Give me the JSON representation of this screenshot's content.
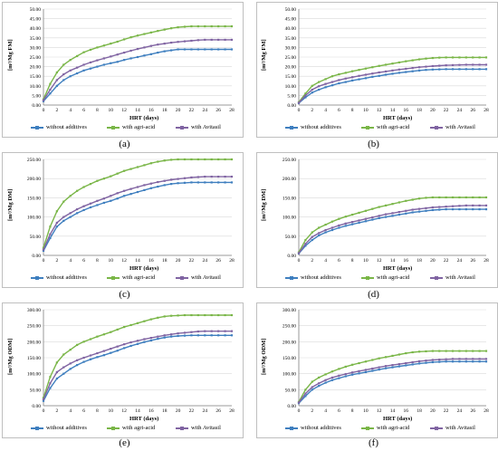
{
  "legend": {
    "s1": "without additives",
    "s2": "with agri-acid",
    "s3": "with Avitasil"
  },
  "colors": {
    "s1": "#3f7fbf",
    "s2": "#7ab648",
    "s3": "#8064a2"
  },
  "chart_data": [
    {
      "type": "line",
      "caption": "(a)",
      "ylabel": "[m³/Mg FM]",
      "xlabel": "HRT (days)",
      "ylim": [
        0,
        50
      ],
      "yticks": [
        "0.00",
        "5.00",
        "10.00",
        "15.00",
        "20.00",
        "25.00",
        "30.00",
        "35.00",
        "40.00",
        "45.00",
        "50.00"
      ],
      "xticks": [
        "0",
        "2",
        "4",
        "6",
        "8",
        "10",
        "12",
        "14",
        "16",
        "18",
        "20",
        "22",
        "24",
        "26",
        "28"
      ],
      "x": [
        0,
        1,
        2,
        3,
        4,
        5,
        6,
        7,
        8,
        9,
        10,
        11,
        12,
        13,
        14,
        15,
        16,
        17,
        18,
        19,
        20,
        21,
        22,
        23,
        24,
        25,
        26,
        27,
        28
      ],
      "series": [
        {
          "name": "without additives",
          "values": [
            2,
            6,
            10,
            13,
            15,
            16.5,
            18,
            19,
            20,
            21,
            21.8,
            22.5,
            23.5,
            24.3,
            25,
            25.8,
            26.5,
            27.3,
            28,
            28.5,
            29,
            29,
            29,
            29,
            29,
            29,
            29,
            29,
            29
          ]
        },
        {
          "name": "with agri-acid",
          "values": [
            3,
            11,
            17,
            21,
            23.5,
            25.5,
            27.5,
            28.8,
            30,
            31,
            32,
            33,
            34.2,
            35.3,
            36.2,
            37,
            37.8,
            38.6,
            39.3,
            40,
            40.5,
            40.8,
            41,
            41,
            41,
            41,
            41,
            41,
            41
          ]
        },
        {
          "name": "with Avitasil",
          "values": [
            2.5,
            8,
            13,
            16,
            18,
            19.5,
            21,
            22.2,
            23.3,
            24.3,
            25.3,
            26.3,
            27.3,
            28.3,
            29.2,
            30,
            30.8,
            31.5,
            32,
            32.5,
            32.9,
            33.2,
            33.5,
            33.8,
            34,
            34,
            34,
            34,
            34
          ]
        }
      ]
    },
    {
      "type": "line",
      "caption": "(b)",
      "ylabel": "[m³/Mg FM]",
      "xlabel": "HRT (days)",
      "ylim": [
        0,
        50
      ],
      "yticks": [
        "0.00",
        "5.00",
        "10.00",
        "15.00",
        "20.00",
        "25.00",
        "30.00",
        "35.00",
        "40.00",
        "45.00",
        "50.00"
      ],
      "xticks": [
        "0",
        "2",
        "4",
        "6",
        "8",
        "10",
        "12",
        "14",
        "16",
        "18",
        "20",
        "22",
        "24",
        "26",
        "28"
      ],
      "x": [
        0,
        1,
        2,
        3,
        4,
        5,
        6,
        7,
        8,
        9,
        10,
        11,
        12,
        13,
        14,
        15,
        16,
        17,
        18,
        19,
        20,
        21,
        22,
        23,
        24,
        25,
        26,
        27,
        28
      ],
      "series": [
        {
          "name": "without additives",
          "values": [
            1,
            4,
            6.5,
            8,
            9.3,
            10.3,
            11.3,
            12,
            12.8,
            13.4,
            14,
            14.7,
            15.2,
            15.8,
            16.3,
            16.8,
            17.2,
            17.6,
            18,
            18.3,
            18.5,
            18.6,
            18.7,
            18.7,
            18.7,
            18.7,
            18.7,
            18.7,
            18.7
          ]
        },
        {
          "name": "with agri-acid",
          "values": [
            1.5,
            6,
            10,
            12,
            13.5,
            15,
            16,
            16.8,
            17.6,
            18.3,
            19,
            19.7,
            20.4,
            21,
            21.6,
            22.2,
            22.8,
            23.3,
            23.8,
            24.2,
            24.5,
            24.7,
            24.8,
            24.8,
            24.8,
            24.8,
            24.8,
            24.8,
            24.8
          ]
        },
        {
          "name": "with Avitasil",
          "values": [
            1.2,
            5,
            8,
            9.8,
            11,
            12,
            13,
            13.8,
            14.5,
            15.2,
            15.8,
            16.4,
            17,
            17.5,
            18,
            18.5,
            18.9,
            19.3,
            19.7,
            20,
            20.3,
            20.5,
            20.7,
            20.8,
            20.9,
            21,
            21,
            21,
            21
          ]
        }
      ]
    },
    {
      "type": "line",
      "caption": "(c)",
      "ylabel": "[m³/Mg DM]",
      "xlabel": "HRT (days)",
      "ylim": [
        0,
        250
      ],
      "yticks": [
        "0.00",
        "50.00",
        "100.00",
        "150.00",
        "200.00",
        "250.00"
      ],
      "xticks": [
        "0",
        "2",
        "4",
        "6",
        "8",
        "10",
        "12",
        "14",
        "16",
        "18",
        "20",
        "22",
        "24",
        "26",
        "28"
      ],
      "x": [
        0,
        1,
        2,
        3,
        4,
        5,
        6,
        7,
        8,
        9,
        10,
        11,
        12,
        13,
        14,
        15,
        16,
        17,
        18,
        19,
        20,
        21,
        22,
        23,
        24,
        25,
        26,
        27,
        28
      ],
      "series": [
        {
          "name": "without additives",
          "values": [
            12,
            45,
            75,
            90,
            100,
            110,
            118,
            125,
            131,
            137,
            142,
            148,
            155,
            160,
            165,
            170,
            175,
            179,
            183,
            186,
            188,
            189,
            190,
            190,
            190,
            190,
            190,
            190,
            190
          ]
        },
        {
          "name": "with agri-acid",
          "values": [
            20,
            75,
            115,
            140,
            155,
            168,
            178,
            186,
            194,
            200,
            206,
            213,
            220,
            225,
            230,
            235,
            240,
            244,
            247,
            249,
            250,
            250,
            250,
            250,
            250,
            250,
            250,
            250,
            250
          ]
        },
        {
          "name": "with Avitasil",
          "values": [
            15,
            55,
            85,
            100,
            110,
            120,
            128,
            135,
            142,
            148,
            155,
            162,
            168,
            173,
            178,
            183,
            187,
            191,
            194,
            197,
            199,
            201,
            203,
            204,
            205,
            205,
            205,
            205,
            205
          ]
        }
      ]
    },
    {
      "type": "line",
      "caption": "(d)",
      "ylabel": "[m³/Mg DM]",
      "xlabel": "HRT (days)",
      "ylim": [
        0,
        250
      ],
      "yticks": [
        "0.00",
        "50.00",
        "100.00",
        "150.00",
        "200.00",
        "250.00"
      ],
      "xticks": [
        "0",
        "2",
        "4",
        "6",
        "8",
        "10",
        "12",
        "14",
        "16",
        "18",
        "20",
        "22",
        "24",
        "26",
        "28"
      ],
      "x": [
        0,
        1,
        2,
        3,
        4,
        5,
        6,
        7,
        8,
        9,
        10,
        11,
        12,
        13,
        14,
        15,
        16,
        17,
        18,
        19,
        20,
        21,
        22,
        23,
        24,
        25,
        26,
        27,
        28
      ],
      "series": [
        {
          "name": "without additives",
          "values": [
            5,
            25,
            40,
            52,
            60,
            66,
            72,
            77,
            81,
            85,
            89,
            93,
            97,
            100,
            103,
            106,
            109,
            112,
            114,
            116,
            118,
            119,
            120,
            120,
            120,
            120,
            120,
            120,
            120
          ]
        },
        {
          "name": "with agri-acid",
          "values": [
            8,
            40,
            60,
            72,
            80,
            88,
            95,
            101,
            106,
            111,
            116,
            121,
            126,
            130,
            134,
            138,
            142,
            145,
            148,
            150,
            151,
            151,
            151,
            151,
            151,
            151,
            151,
            151,
            151
          ]
        },
        {
          "name": "with Avitasil",
          "values": [
            6,
            30,
            48,
            58,
            66,
            72,
            78,
            83,
            87,
            91,
            95,
            99,
            103,
            107,
            110,
            113,
            116,
            119,
            121,
            123,
            125,
            126,
            127,
            128,
            129,
            130,
            130,
            130,
            130
          ]
        }
      ]
    },
    {
      "type": "line",
      "caption": "(e)",
      "ylabel": "[m³/Mg ODM]",
      "xlabel": "HRT (days)",
      "ylim": [
        0,
        300
      ],
      "yticks": [
        "0.00",
        "50.00",
        "100.00",
        "150.00",
        "200.00",
        "250.00",
        "300.00"
      ],
      "xticks": [
        "0",
        "2",
        "4",
        "6",
        "8",
        "10",
        "12",
        "14",
        "16",
        "18",
        "20",
        "22",
        "24",
        "26",
        "28"
      ],
      "x": [
        0,
        1,
        2,
        3,
        4,
        5,
        6,
        7,
        8,
        9,
        10,
        11,
        12,
        13,
        14,
        15,
        16,
        17,
        18,
        19,
        20,
        21,
        22,
        23,
        24,
        25,
        26,
        27,
        28
      ],
      "series": [
        {
          "name": "without additives",
          "values": [
            15,
            55,
            85,
            100,
            115,
            127,
            137,
            145,
            152,
            158,
            165,
            172,
            180,
            187,
            193,
            199,
            204,
            209,
            213,
            216,
            218,
            219,
            220,
            220,
            220,
            220,
            220,
            220,
            220
          ]
        },
        {
          "name": "with agri-acid",
          "values": [
            25,
            90,
            135,
            160,
            175,
            190,
            200,
            208,
            216,
            223,
            230,
            238,
            246,
            252,
            258,
            264,
            270,
            275,
            279,
            281,
            282,
            283,
            283,
            283,
            283,
            283,
            283,
            283,
            283
          ]
        },
        {
          "name": "with Avitasil",
          "values": [
            20,
            70,
            105,
            120,
            132,
            142,
            150,
            157,
            164,
            171,
            178,
            185,
            192,
            198,
            203,
            208,
            212,
            216,
            220,
            223,
            226,
            228,
            230,
            232,
            233,
            233,
            233,
            233,
            233
          ]
        }
      ]
    },
    {
      "type": "line",
      "caption": "(f)",
      "ylabel": "[m³/Mg ODM]",
      "xlabel": "HRT (days)",
      "ylim": [
        0,
        300
      ],
      "yticks": [
        "0.00",
        "50.00",
        "100.00",
        "150.00",
        "200.00",
        "250.00",
        "300.00"
      ],
      "xticks": [
        "0",
        "2",
        "4",
        "6",
        "8",
        "10",
        "12",
        "14",
        "16",
        "18",
        "20",
        "22",
        "24",
        "26",
        "28"
      ],
      "x": [
        0,
        1,
        2,
        3,
        4,
        5,
        6,
        7,
        8,
        9,
        10,
        11,
        12,
        13,
        14,
        15,
        16,
        17,
        18,
        19,
        20,
        21,
        22,
        23,
        24,
        25,
        26,
        27,
        28
      ],
      "series": [
        {
          "name": "without additives",
          "values": [
            8,
            30,
            50,
            62,
            72,
            80,
            86,
            92,
            97,
            101,
            105,
            109,
            113,
            117,
            120,
            123,
            126,
            129,
            132,
            134,
            136,
            137,
            138,
            138,
            138,
            138,
            138,
            138,
            138
          ]
        },
        {
          "name": "with agri-acid",
          "values": [
            12,
            50,
            75,
            88,
            98,
            107,
            115,
            122,
            128,
            133,
            138,
            143,
            148,
            152,
            156,
            160,
            164,
            167,
            169,
            170,
            171,
            171,
            171,
            171,
            171,
            171,
            171,
            171,
            171
          ]
        },
        {
          "name": "with Avitasil",
          "values": [
            10,
            38,
            58,
            70,
            80,
            88,
            94,
            99,
            104,
            108,
            112,
            116,
            120,
            124,
            127,
            130,
            133,
            136,
            139,
            141,
            143,
            144,
            145,
            146,
            146,
            146,
            146,
            146,
            146
          ]
        }
      ]
    }
  ]
}
